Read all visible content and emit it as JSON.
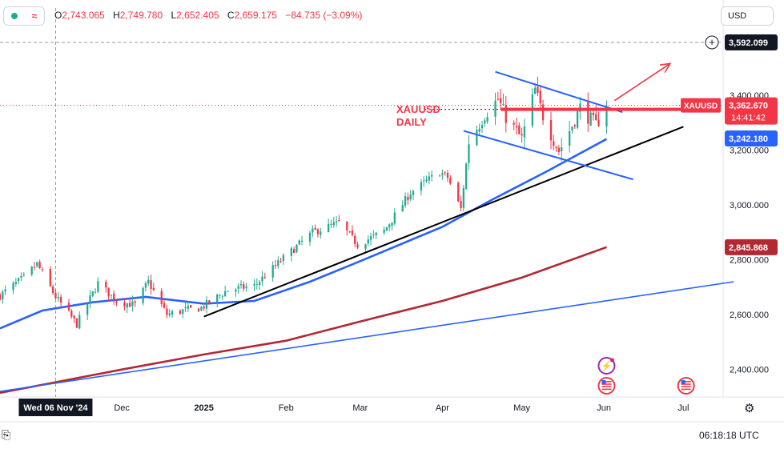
{
  "header": {
    "open_label": "O",
    "open": "2,743.065",
    "high_label": "H",
    "high": "2,749.780",
    "low_label": "L",
    "low": "2,652.405",
    "close_label": "C",
    "close": "2,659.175",
    "change": "−84.735 (−3.09%)",
    "currency": "USD",
    "up_color": "#22ab94",
    "down_color": "#f23645"
  },
  "footer": {
    "clock": "06:18:18 UTC"
  },
  "chart_data": {
    "type": "candlestick",
    "symbol": "XAUUSD",
    "timeframe": "Daily",
    "annotation": "XAUUSD\nDAILY",
    "y_axis": {
      "ticks": [
        2400,
        2600,
        2800,
        3000,
        3200,
        3400
      ],
      "tick_labels": [
        "2,400.000",
        "2,600.000",
        "2,800.000",
        "3,000.000",
        "3,200.000",
        "3,400.000"
      ],
      "range": [
        2300,
        3630
      ]
    },
    "x_axis": {
      "range": [
        "2024-10-16",
        "2025-07-16"
      ],
      "ticks": [
        {
          "date": "2024-12-01",
          "label": "Dec"
        },
        {
          "date": "2025-01-01",
          "label": "2025"
        },
        {
          "date": "2025-02-01",
          "label": "Feb"
        },
        {
          "date": "2025-03-01",
          "label": "Mar"
        },
        {
          "date": "2025-04-01",
          "label": "Apr"
        },
        {
          "date": "2025-05-01",
          "label": "May"
        },
        {
          "date": "2025-06-01",
          "label": "Jun"
        },
        {
          "date": "2025-07-01",
          "label": "Jul"
        }
      ],
      "crosshair": {
        "date": "2024-11-06",
        "label": "Wed 06 Nov '24"
      }
    },
    "price_labels": [
      {
        "value": 3592.099,
        "label": "3,592.099",
        "color": "#131722",
        "kind": "crosshair"
      },
      {
        "value": 3362.67,
        "label": "3,362.670",
        "sub": "14:41:42",
        "color": "#f23645",
        "kind": "last"
      },
      {
        "value": 3242.18,
        "label": "3,242.180",
        "color": "#2962ff",
        "kind": "ma"
      },
      {
        "value": 2845.868,
        "label": "2,845.868",
        "color": "#b22833",
        "kind": "ma"
      }
    ],
    "last_price_tag": "XAUUSD",
    "close_path": [
      [
        "2024-10-16",
        2670
      ],
      [
        "2024-10-25",
        2735
      ],
      [
        "2024-10-30",
        2785
      ],
      [
        "2024-11-06",
        2665
      ],
      [
        "2024-11-14",
        2565
      ],
      [
        "2024-11-22",
        2715
      ],
      [
        "2024-11-29",
        2650
      ],
      [
        "2024-12-06",
        2635
      ],
      [
        "2024-12-11",
        2720
      ],
      [
        "2024-12-18",
        2600
      ],
      [
        "2024-12-24",
        2615
      ],
      [
        "2024-12-31",
        2625
      ],
      [
        "2025-01-10",
        2690
      ],
      [
        "2025-01-20",
        2705
      ],
      [
        "2025-01-31",
        2805
      ],
      [
        "2025-02-11",
        2900
      ],
      [
        "2025-02-21",
        2935
      ],
      [
        "2025-02-28",
        2855
      ],
      [
        "2025-03-10",
        2905
      ],
      [
        "2025-03-20",
        3045
      ],
      [
        "2025-03-31",
        3120
      ],
      [
        "2025-04-03",
        3100
      ],
      [
        "2025-04-08",
        2985
      ],
      [
        "2025-04-11",
        3230
      ],
      [
        "2025-04-17",
        3330
      ],
      [
        "2025-04-22",
        3385
      ],
      [
        "2025-04-25",
        3320
      ],
      [
        "2025-05-01",
        3240
      ],
      [
        "2025-05-06",
        3420
      ],
      [
        "2025-05-09",
        3325
      ],
      [
        "2025-05-15",
        3195
      ],
      [
        "2025-05-20",
        3290
      ],
      [
        "2025-05-23",
        3355
      ],
      [
        "2025-05-29",
        3290
      ],
      [
        "2025-06-02",
        3362.67
      ]
    ],
    "series": [
      {
        "name": "MA blue",
        "color": "#2962ff",
        "values": [
          [
            "2024-10-16",
            2550
          ],
          [
            "2024-11-01",
            2615
          ],
          [
            "2024-11-20",
            2645
          ],
          [
            "2024-12-10",
            2665
          ],
          [
            "2025-01-01",
            2640
          ],
          [
            "2025-01-20",
            2650
          ],
          [
            "2025-02-10",
            2720
          ],
          [
            "2025-03-01",
            2795
          ],
          [
            "2025-04-01",
            2920
          ],
          [
            "2025-04-20",
            3020
          ],
          [
            "2025-05-10",
            3120
          ],
          [
            "2025-06-02",
            3240
          ]
        ]
      },
      {
        "name": "MA red",
        "color": "#b22833",
        "values": [
          [
            "2024-10-16",
            2315
          ],
          [
            "2024-12-01",
            2400
          ],
          [
            "2025-01-01",
            2455
          ],
          [
            "2025-02-01",
            2505
          ],
          [
            "2025-03-01",
            2575
          ],
          [
            "2025-04-01",
            2650
          ],
          [
            "2025-05-01",
            2735
          ],
          [
            "2025-06-02",
            2845.868
          ]
        ]
      },
      {
        "name": "Long trend",
        "color": "#2962ff",
        "values": [
          [
            "2024-10-16",
            2320
          ],
          [
            "2025-07-20",
            2720
          ]
        ]
      }
    ],
    "drawings": [
      {
        "kind": "trendline",
        "color": "#000000",
        "from": [
          "2025-01-01",
          2593
        ],
        "to": [
          "2025-07-01",
          3285
        ]
      },
      {
        "kind": "trendline",
        "color": "#2962ff",
        "from": [
          "2025-04-21",
          3485
        ],
        "to": [
          "2025-06-08",
          3338
        ]
      },
      {
        "kind": "trendline",
        "color": "#2962ff",
        "from": [
          "2025-04-09",
          3270
        ],
        "to": [
          "2025-06-12",
          3093
        ]
      },
      {
        "kind": "hline",
        "color": "#f23645",
        "value": 3348,
        "from": "2025-04-23",
        "to": "2025-07-05"
      },
      {
        "kind": "arrow",
        "color": "#f23645",
        "from": [
          "2025-06-05",
          3380
        ],
        "to": [
          "2025-06-26",
          3515
        ]
      }
    ],
    "events": [
      {
        "date": "2025-06-02",
        "kind": "dividend",
        "icon": "⚡"
      },
      {
        "date": "2025-06-02",
        "kind": "economic",
        "icon": "US flag"
      },
      {
        "date": "2025-07-02",
        "kind": "economic",
        "icon": "US flag"
      }
    ]
  }
}
